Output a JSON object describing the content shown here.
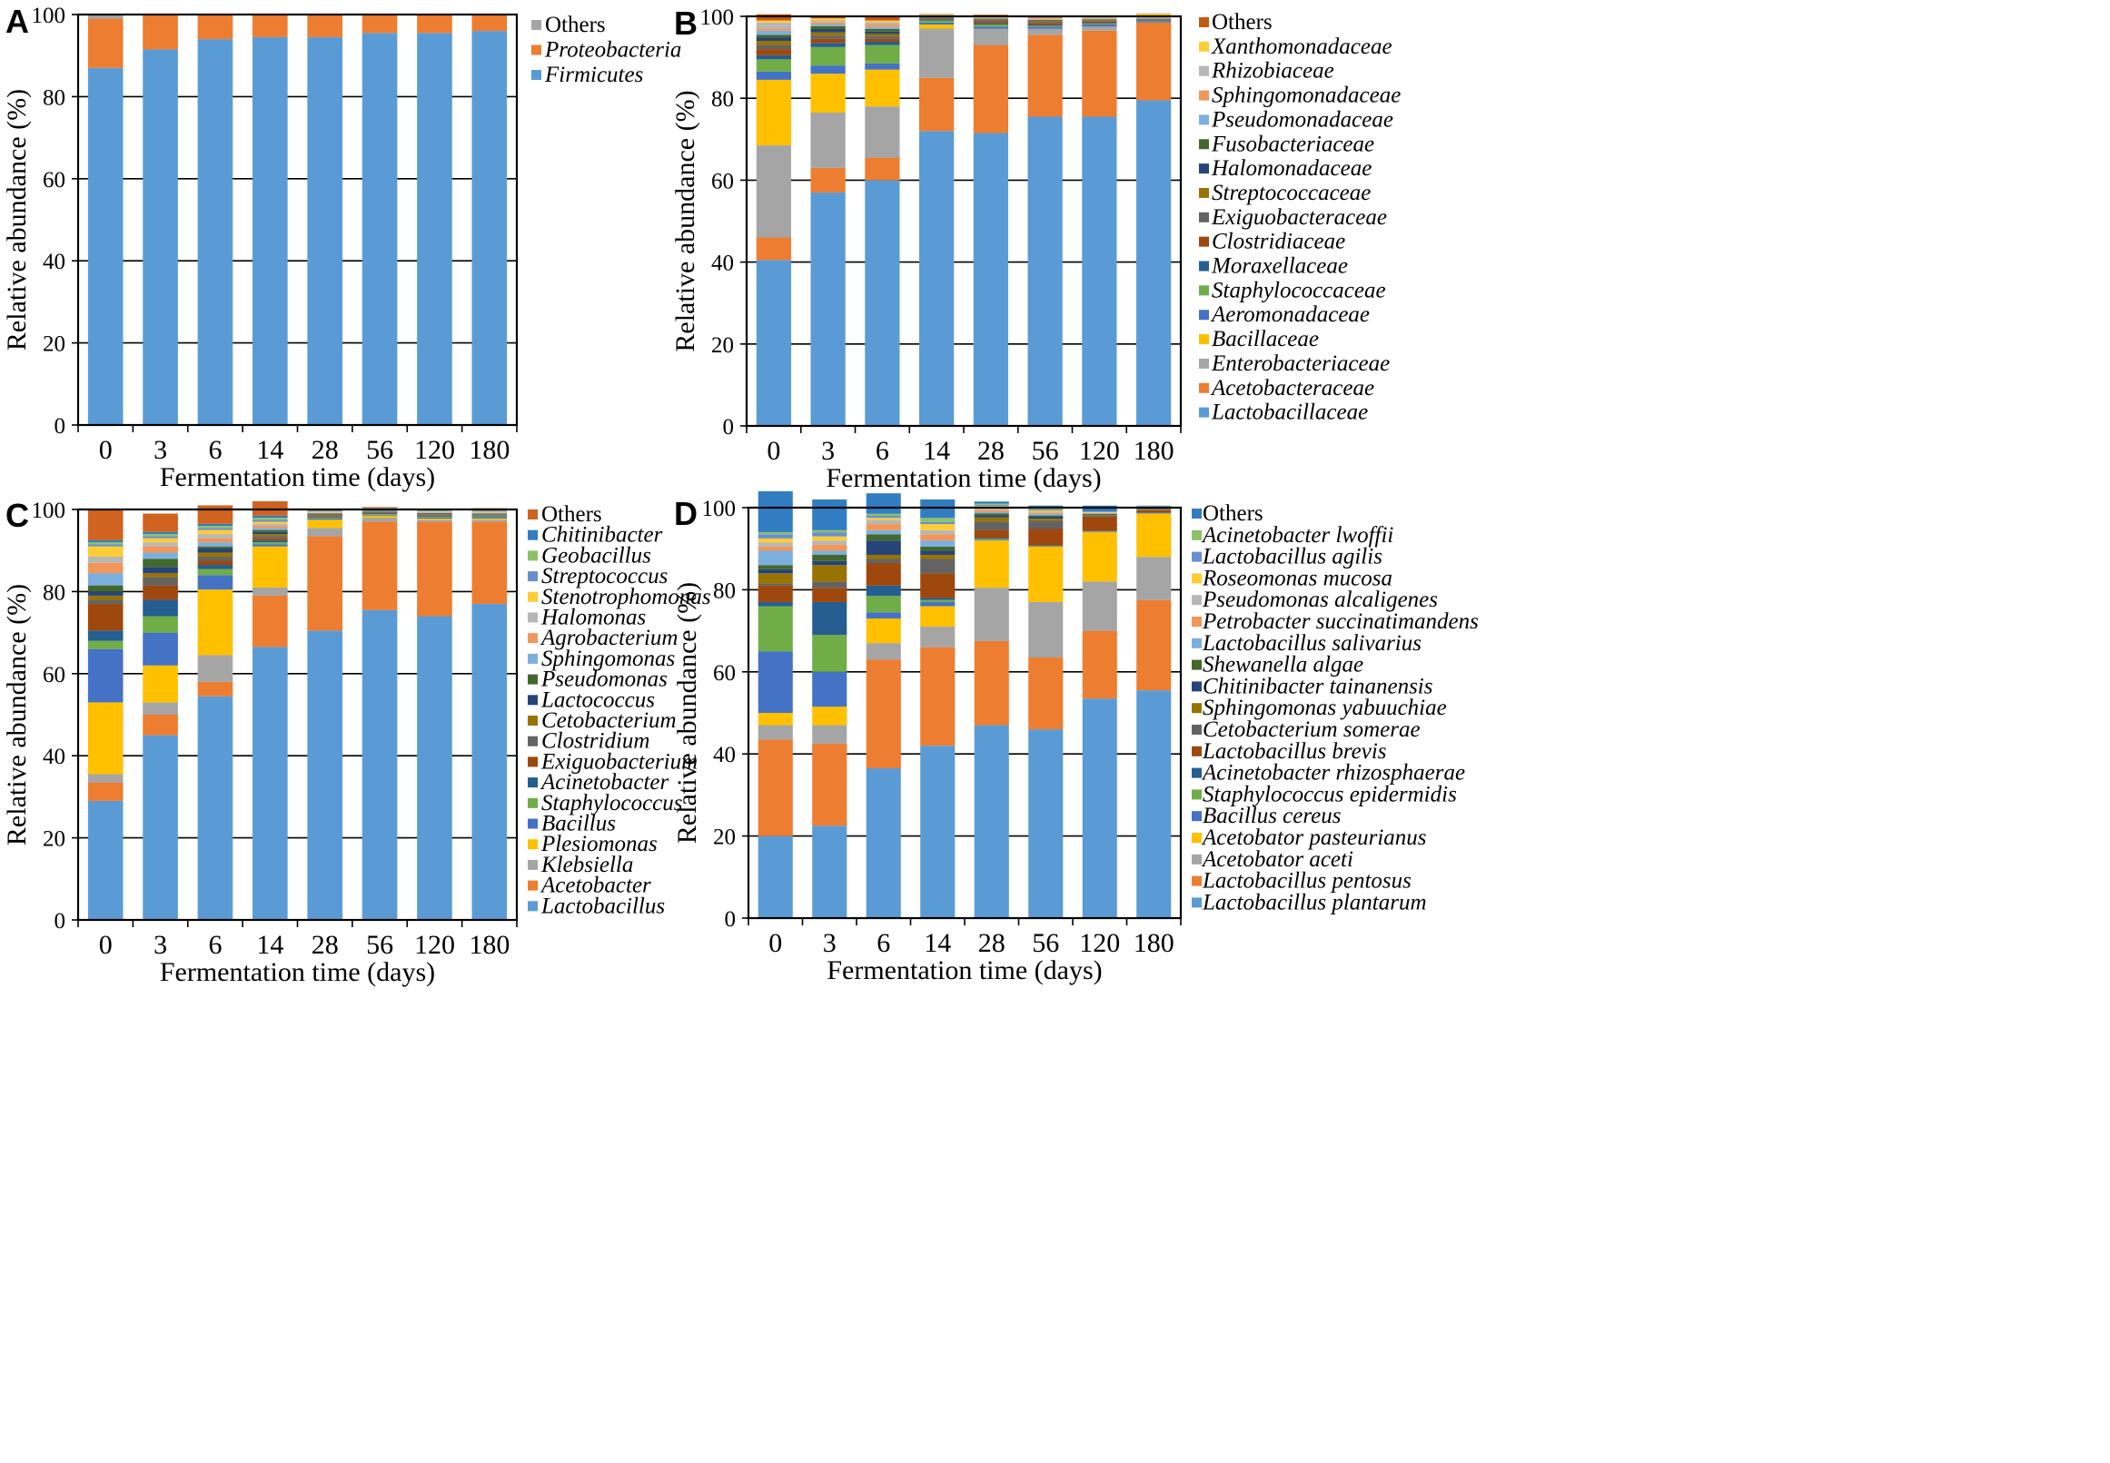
{
  "figure": {
    "x_axis_label": "Fermentation time (days)",
    "y_axis_label": "Relative abundance (%)"
  },
  "chart_data": [
    {
      "panel": "A",
      "type": "bar",
      "stacked": true,
      "xlabel": "Fermentation time (days)",
      "ylabel": "Relative abundance (%)",
      "ylim": [
        0,
        100
      ],
      "yticks": [
        0,
        20,
        40,
        60,
        80,
        100
      ],
      "categories": [
        "0",
        "3",
        "6",
        "14",
        "28",
        "56",
        "120",
        "180"
      ],
      "series": [
        {
          "name": "Firmicutes",
          "italic": true,
          "color": "#5B9BD5",
          "values": [
            87,
            91.5,
            94,
            94.5,
            94.5,
            95.5,
            95.5,
            96
          ]
        },
        {
          "name": "Proteobacteria",
          "italic": true,
          "color": "#ED7D31",
          "values": [
            12,
            8.5,
            6,
            5.5,
            5.5,
            4.5,
            4.5,
            4
          ]
        },
        {
          "name": "Others",
          "italic": false,
          "color": "#A5A5A5",
          "values": [
            1,
            0,
            0,
            0,
            0,
            0,
            0,
            0
          ]
        }
      ]
    },
    {
      "panel": "B",
      "type": "bar",
      "stacked": true,
      "xlabel": "Fermentation time (days)",
      "ylabel": "Relative abundance (%)",
      "ylim": [
        0,
        100
      ],
      "yticks": [
        0,
        20,
        40,
        60,
        80,
        100
      ],
      "categories": [
        "0",
        "3",
        "6",
        "14",
        "28",
        "56",
        "120",
        "180"
      ],
      "series": [
        {
          "name": "Lactobacillaceae",
          "italic": true,
          "color": "#5B9BD5",
          "values": [
            40.5,
            57,
            60,
            72,
            71.5,
            75.5,
            75.5,
            79.5
          ]
        },
        {
          "name": "Acetobacteraceae",
          "italic": true,
          "color": "#ED7D31",
          "values": [
            5.5,
            6,
            5.5,
            13,
            21.5,
            20,
            21,
            19
          ]
        },
        {
          "name": "Enterobacteriaceae",
          "italic": true,
          "color": "#A5A5A5",
          "values": [
            22.5,
            13.5,
            12.5,
            12,
            4,
            1.5,
            1,
            0
          ]
        },
        {
          "name": "Bacillaceae",
          "italic": true,
          "color": "#FFC000",
          "values": [
            16,
            9.5,
            9,
            1,
            0,
            0,
            0,
            0
          ]
        },
        {
          "name": "Aeromonadaceae",
          "italic": true,
          "color": "#4472C4",
          "values": [
            2,
            2,
            1.5,
            0.5,
            0.5,
            0.5,
            0.5,
            0.3
          ]
        },
        {
          "name": "Staphylococcaceae",
          "italic": true,
          "color": "#70AD47",
          "values": [
            3,
            4.5,
            4.5,
            0.5,
            0.5,
            0.2,
            0.2,
            0.1
          ]
        },
        {
          "name": "Moraxellaceae",
          "italic": true,
          "color": "#255E91",
          "values": [
            1,
            1,
            0.8,
            0.3,
            0.3,
            0.2,
            0.2,
            0.1
          ]
        },
        {
          "name": "Clostridiaceae",
          "italic": true,
          "color": "#9E480E",
          "values": [
            1.5,
            1,
            0.7,
            0.2,
            0.5,
            0.5,
            0.3,
            0.1
          ]
        },
        {
          "name": "Exiguobacteraceae",
          "italic": true,
          "color": "#636363",
          "values": [
            1,
            0.8,
            0.6,
            0.2,
            0.3,
            0.3,
            0.2,
            0.1
          ]
        },
        {
          "name": "Streptococcaceae",
          "italic": true,
          "color": "#997300",
          "values": [
            1,
            0.8,
            0.6,
            0.2,
            0.2,
            0.2,
            0.2,
            0.1
          ]
        },
        {
          "name": "Halomonadaceae",
          "italic": true,
          "color": "#264478",
          "values": [
            0.8,
            0.8,
            0.6,
            0.1,
            0.1,
            0.1,
            0.1,
            0.1
          ]
        },
        {
          "name": "Fusobacteriaceae",
          "italic": true,
          "color": "#43682B",
          "values": [
            0.7,
            0.7,
            0.6,
            0.1,
            0.1,
            0.1,
            0.1,
            0.1
          ]
        },
        {
          "name": "Pseudomonadaceae",
          "italic": true,
          "color": "#7CAFDD",
          "values": [
            1,
            0.4,
            0.5,
            0.1,
            0.1,
            0.1,
            0.1,
            0.1
          ]
        },
        {
          "name": "Sphingomonadaceae",
          "italic": true,
          "color": "#F1975A",
          "values": [
            0.5,
            0.5,
            0.6,
            0.1,
            0.1,
            0.1,
            0.1,
            0.1
          ]
        },
        {
          "name": "Rhizobiaceae",
          "italic": true,
          "color": "#B7B7B7",
          "values": [
            1.5,
            0.5,
            0.6,
            0.1,
            0.1,
            0.1,
            0.1,
            0.1
          ]
        },
        {
          "name": "Xanthomonadaceae",
          "italic": true,
          "color": "#FFCD33",
          "values": [
            0.5,
            0.5,
            0.4,
            0.1,
            0.1,
            0.1,
            0.1,
            0.8
          ]
        },
        {
          "name": "Others",
          "italic": false,
          "color": "#C55A11",
          "values": [
            1.5,
            0.5,
            0.9,
            0.1,
            0.5,
            0.2,
            0.1,
            0.1
          ]
        }
      ]
    },
    {
      "panel": "C",
      "type": "bar",
      "stacked": true,
      "xlabel": "Fermentation time (days)",
      "ylabel": "Relative abundance (%)",
      "ylim": [
        0,
        100
      ],
      "yticks": [
        0,
        20,
        40,
        60,
        80,
        100
      ],
      "categories": [
        "0",
        "3",
        "6",
        "14",
        "28",
        "56",
        "120",
        "180"
      ],
      "series": [
        {
          "name": "Lactobacillus",
          "italic": true,
          "color": "#5B9BD5",
          "values": [
            29,
            45,
            54.5,
            66.5,
            70.5,
            75.5,
            74,
            77
          ]
        },
        {
          "name": "Acetobacter",
          "italic": true,
          "color": "#ED7D31",
          "values": [
            4.5,
            5,
            3.5,
            12.5,
            23,
            21.5,
            23,
            20
          ]
        },
        {
          "name": "Klebsiella",
          "italic": true,
          "color": "#A5A5A5",
          "values": [
            2,
            3,
            6.5,
            2,
            2,
            1,
            0.5,
            0.5
          ]
        },
        {
          "name": "Plesiomonas",
          "italic": true,
          "color": "#FFC000",
          "values": [
            17.5,
            9,
            16,
            10,
            2,
            0.5,
            0.3,
            0.3
          ]
        },
        {
          "name": "Bacillus",
          "italic": true,
          "color": "#4472C4",
          "values": [
            13,
            8,
            3.5,
            0.5,
            0.3,
            0.2,
            0.3,
            0.3
          ]
        },
        {
          "name": "Staphylococcus",
          "italic": true,
          "color": "#70AD47",
          "values": [
            2,
            4,
            1.5,
            0.5,
            0.2,
            0.2,
            0.2,
            0.2
          ]
        },
        {
          "name": "Acinetobacter",
          "italic": true,
          "color": "#255E91",
          "values": [
            2.5,
            4,
            1,
            0.5,
            0.2,
            0.2,
            0.2,
            0.2
          ]
        },
        {
          "name": "Exiguobacterium",
          "italic": true,
          "color": "#9E480E",
          "values": [
            6.5,
            3.5,
            1,
            0.5,
            0.2,
            0.2,
            0.2,
            0.1
          ]
        },
        {
          "name": "Clostridium",
          "italic": true,
          "color": "#636363",
          "values": [
            1,
            2,
            1,
            0.5,
            0.2,
            0.1,
            0.1,
            0.1
          ]
        },
        {
          "name": "Cetobacterium",
          "italic": true,
          "color": "#997300",
          "values": [
            1,
            1,
            1,
            0.5,
            0.2,
            0.1,
            0.1,
            0.1
          ]
        },
        {
          "name": "Lactococcus",
          "italic": true,
          "color": "#264478",
          "values": [
            1,
            1.5,
            1,
            0.5,
            0.1,
            0.1,
            0.1,
            0.1
          ]
        },
        {
          "name": "Pseudomonas",
          "italic": true,
          "color": "#43682B",
          "values": [
            1.5,
            2,
            0.5,
            0.5,
            0.1,
            0.1,
            0.1,
            0.1
          ]
        },
        {
          "name": "Sphingomonas",
          "italic": true,
          "color": "#7CAFDD",
          "values": [
            3,
            1.5,
            1,
            0.5,
            0.1,
            0.1,
            0.1,
            0.1
          ]
        },
        {
          "name": "Agrobacterium",
          "italic": true,
          "color": "#F1975A",
          "values": [
            2.5,
            1.5,
            1,
            0.5,
            0.1,
            0.1,
            0.1,
            0.1
          ]
        },
        {
          "name": "Halomonas",
          "italic": true,
          "color": "#B7B7B7",
          "values": [
            1.5,
            1,
            1,
            0.5,
            0.1,
            0.1,
            0.1,
            0.1
          ]
        },
        {
          "name": "Stenotrophomonas",
          "italic": true,
          "color": "#FFCD33",
          "values": [
            2.5,
            1,
            1,
            0.5,
            0.1,
            0.1,
            0.1,
            0.1
          ]
        },
        {
          "name": "Streptococcus",
          "italic": true,
          "color": "#698ED0",
          "values": [
            0.5,
            0.5,
            0.5,
            0.5,
            0.1,
            0.1,
            0.1,
            0.1
          ]
        },
        {
          "name": "Geobacillus",
          "italic": true,
          "color": "#8CC168",
          "values": [
            0.5,
            0.5,
            0.5,
            0.5,
            0.1,
            0.1,
            0.1,
            0.1
          ]
        },
        {
          "name": "Chitinibacter",
          "italic": true,
          "color": "#327DC2",
          "values": [
            0.5,
            0.5,
            0.5,
            0.5,
            0.1,
            0.1,
            0.1,
            0.1
          ]
        },
        {
          "name": "Others",
          "italic": false,
          "color": "#D0631F",
          "values": [
            7.5,
            4.5,
            4.5,
            3.5,
            0.5,
            0.2,
            0.2,
            0.6
          ]
        }
      ]
    },
    {
      "panel": "D",
      "type": "bar",
      "stacked": true,
      "xlabel": "Fermentation time (days)",
      "ylabel": "Relative abundance (%)",
      "ylim": [
        0,
        100
      ],
      "yticks": [
        0,
        20,
        40,
        60,
        80,
        100
      ],
      "categories": [
        "0",
        "3",
        "6",
        "14",
        "28",
        "56",
        "120",
        "180"
      ],
      "series": [
        {
          "name": "Lactobacillus plantarum",
          "italic": true,
          "color": "#5B9BD5",
          "values": [
            20,
            22.5,
            36.5,
            42,
            47,
            46,
            53.5,
            55.5
          ]
        },
        {
          "name": "Lactobacillus pentosus",
          "italic": true,
          "color": "#ED7D31",
          "values": [
            23.5,
            20,
            26.5,
            24,
            20.5,
            17.5,
            16.5,
            22
          ]
        },
        {
          "name": "Acetobator aceti",
          "italic": true,
          "color": "#A5A5A5",
          "values": [
            3.5,
            4.5,
            4,
            5,
            13,
            13.5,
            12,
            10.5
          ]
        },
        {
          "name": "Acetobator pasteurianus",
          "italic": true,
          "color": "#FFC000",
          "values": [
            3,
            4.5,
            6,
            5,
            11.5,
            13.5,
            12,
            10.5
          ]
        },
        {
          "name": "Bacillus cereus",
          "italic": true,
          "color": "#4472C4",
          "values": [
            15,
            8.5,
            1.5,
            1,
            0.2,
            0.1,
            0.1,
            0.1
          ]
        },
        {
          "name": "Staphylococcus epidermidis",
          "italic": true,
          "color": "#70AD47",
          "values": [
            11,
            9,
            4,
            0.5,
            0.2,
            0.1,
            0.1,
            0.1
          ]
        },
        {
          "name": "Acinetobacter rhizosphaerae",
          "italic": true,
          "color": "#255E91",
          "values": [
            1,
            8,
            2.5,
            0.5,
            0.2,
            0.1,
            0.1,
            0.1
          ]
        },
        {
          "name": "Lactobacillus brevis",
          "italic": true,
          "color": "#9E480E",
          "values": [
            4,
            3.5,
            5.5,
            6,
            2,
            4,
            3.5,
            0.6
          ]
        },
        {
          "name": "Cetobacterium somerae",
          "italic": true,
          "color": "#636363",
          "values": [
            0.5,
            1.5,
            1,
            3.5,
            2,
            2,
            0.2,
            0.1
          ]
        },
        {
          "name": "Sphingomonas yabuuchiae",
          "italic": true,
          "color": "#997300",
          "values": [
            2.5,
            4,
            1,
            1,
            1,
            0.5,
            0.2,
            0.1
          ]
        },
        {
          "name": "Chitinibacter tainanensis",
          "italic": true,
          "color": "#264478",
          "values": [
            1,
            1,
            3.5,
            1,
            0.5,
            0.5,
            0.2,
            0.1
          ]
        },
        {
          "name": "Shewanella algae",
          "italic": true,
          "color": "#43682B",
          "values": [
            1,
            1.5,
            1.5,
            1,
            0.5,
            0.3,
            0.1,
            0.1
          ]
        },
        {
          "name": "Lactobacillus salivarius",
          "italic": true,
          "color": "#7CAFDD",
          "values": [
            3.5,
            1,
            1,
            1.5,
            0.3,
            0.3,
            0.1,
            0.1
          ]
        },
        {
          "name": "Petrobacter succinatimandens",
          "italic": true,
          "color": "#F1975A",
          "values": [
            1,
            1.5,
            1.5,
            1.5,
            0.5,
            0.3,
            0.1,
            0.1
          ]
        },
        {
          "name": "Pseudomonas alcaligenes",
          "italic": true,
          "color": "#B7B7B7",
          "values": [
            1,
            1,
            1,
            1,
            0.5,
            0.3,
            0.1,
            0.1
          ]
        },
        {
          "name": "Roseomonas mucosa",
          "italic": true,
          "color": "#FFCD33",
          "values": [
            1,
            1,
            0.5,
            1.5,
            0.5,
            0.3,
            0.1,
            0.1
          ]
        },
        {
          "name": "Lactobacillus agilis",
          "italic": true,
          "color": "#698ED0",
          "values": [
            1,
            1,
            0.5,
            0.5,
            0.3,
            0.3,
            0.1,
            0.1
          ]
        },
        {
          "name": "Acinetobacter lwoffii",
          "italic": true,
          "color": "#8CC168",
          "values": [
            0.5,
            0.5,
            0.5,
            1,
            0.3,
            0.2,
            0.1,
            0.1
          ]
        },
        {
          "name": "Others",
          "italic": false,
          "color": "#327DC2",
          "values": [
            10,
            7.5,
            5,
            4.5,
            0.5,
            0.7,
            1.4,
            0.1
          ]
        }
      ]
    }
  ]
}
